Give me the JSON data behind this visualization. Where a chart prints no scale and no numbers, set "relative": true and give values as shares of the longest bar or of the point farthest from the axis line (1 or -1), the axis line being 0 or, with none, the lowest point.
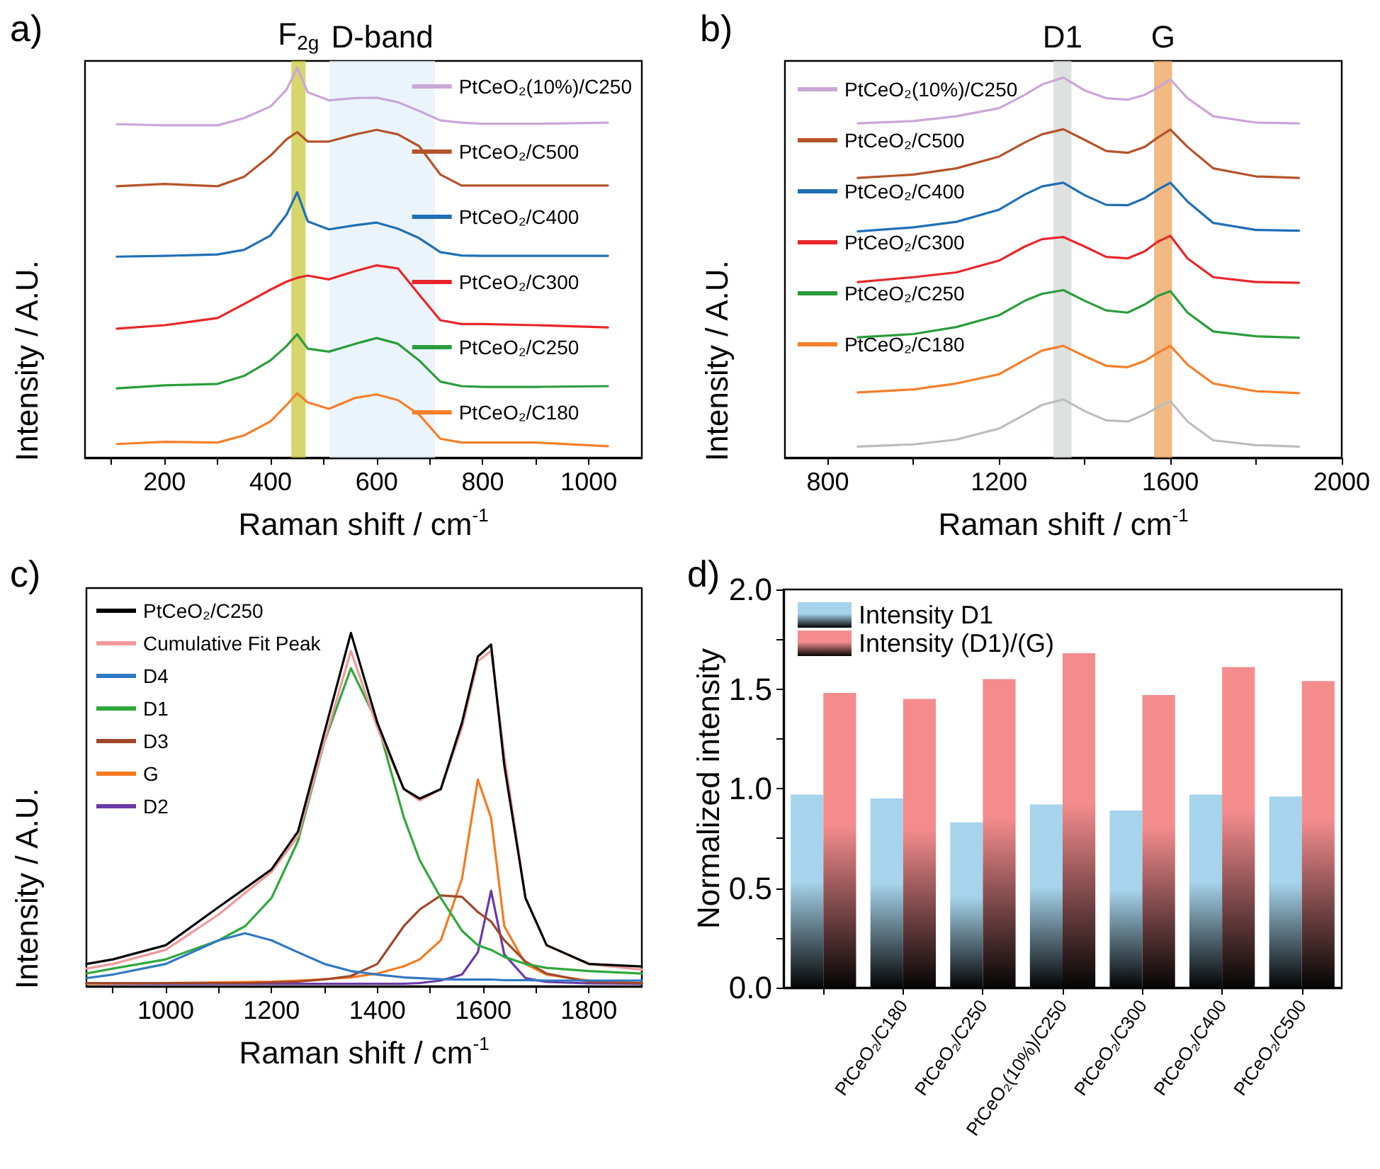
{
  "chart_data": [
    {
      "type": "line",
      "title": "a)",
      "xlabel": "Raman shift / cm$^{-1}$",
      "ylabel": "Intensity / A.U.",
      "relative": true,
      "legend": "top right",
      "xlim": [
        50,
        1100
      ],
      "xticks": [
        {
          "value": 100,
          "label": null
        },
        200,
        {
          "value": 300,
          "label": null
        },
        400,
        {
          "value": 500,
          "label": null
        },
        600,
        {
          "value": 700,
          "label": null
        },
        800,
        {
          "value": 900,
          "label": null
        },
        1000
      ],
      "x": [
        110,
        200,
        300,
        350,
        400,
        430,
        450,
        470,
        510,
        560,
        600,
        640,
        680,
        720,
        760,
        800,
        900,
        1036
      ],
      "bands": [
        {
          "axis": "x",
          "from": 439,
          "to": 466,
          "label": "F$_{2g}$",
          "color": "#c8c83c"
        },
        {
          "axis": "x",
          "from": 511,
          "to": 710,
          "label": "D-band",
          "color": "#e6f0fa"
        }
      ],
      "series": [
        {
          "name": "PtCeO₂(10%)/C250",
          "color": "#c9a6d8",
          "values": [
            0.851,
            0.848,
            0.848,
            0.867,
            0.898,
            0.942,
            1.0,
            0.935,
            0.914,
            0.92,
            0.921,
            0.909,
            0.886,
            0.861,
            0.855,
            0.852,
            0.852,
            0.855
          ]
        },
        {
          "name": "PtCeO₂/C500",
          "color": "#b5532a",
          "values": [
            0.687,
            0.693,
            0.687,
            0.712,
            0.768,
            0.811,
            0.83,
            0.805,
            0.805,
            0.824,
            0.836,
            0.824,
            0.793,
            0.718,
            0.689,
            0.689,
            0.689,
            0.689
          ]
        },
        {
          "name": "PtCeO₂/C400",
          "color": "#1f6fb5",
          "values": [
            0.501,
            0.503,
            0.507,
            0.519,
            0.557,
            0.612,
            0.671,
            0.594,
            0.573,
            0.584,
            0.591,
            0.575,
            0.55,
            0.513,
            0.504,
            0.503,
            0.503,
            0.503
          ]
        },
        {
          "name": "PtCeO₂/C300",
          "color": "#e8262a",
          "values": [
            0.311,
            0.32,
            0.339,
            0.376,
            0.414,
            0.435,
            0.445,
            0.451,
            0.441,
            0.463,
            0.478,
            0.47,
            0.401,
            0.333,
            0.323,
            0.323,
            0.32,
            0.314
          ]
        },
        {
          "name": "PtCeO₂/C250",
          "color": "#2a9d3c",
          "values": [
            0.153,
            0.161,
            0.165,
            0.186,
            0.227,
            0.265,
            0.296,
            0.258,
            0.25,
            0.271,
            0.286,
            0.271,
            0.227,
            0.171,
            0.159,
            0.157,
            0.157,
            0.159
          ]
        },
        {
          "name": "PtCeO₂/C180",
          "color": "#f57f2a",
          "values": [
            0.006,
            0.012,
            0.01,
            0.029,
            0.066,
            0.109,
            0.14,
            0.116,
            0.099,
            0.128,
            0.137,
            0.122,
            0.084,
            0.02,
            0.01,
            0.01,
            0.01,
            0.0
          ]
        }
      ]
    },
    {
      "type": "line",
      "title": "b)",
      "xlabel": "Raman shift / cm$^{-1}$",
      "ylabel": "Intensity / A.U.",
      "relative": true,
      "legend": "top left",
      "xlim": [
        700,
        2000
      ],
      "xticks": [
        800,
        {
          "value": 1000,
          "label": null
        },
        1200,
        {
          "value": 1400,
          "label": null
        },
        1600,
        {
          "value": 1800,
          "label": null
        },
        2000
      ],
      "x": [
        870,
        1000,
        1100,
        1200,
        1260,
        1300,
        1350,
        1400,
        1450,
        1500,
        1540,
        1570,
        1600,
        1640,
        1700,
        1800,
        1900
      ],
      "bands": [
        {
          "axis": "x",
          "from": 1327,
          "to": 1369,
          "label": "D1",
          "color": "#d4d6d6"
        },
        {
          "axis": "x",
          "from": 1562,
          "to": 1604,
          "label": "G",
          "color": "#eda25a"
        }
      ],
      "series": [
        {
          "name": "PtCeO₂(10%)/C250",
          "color": "#c9a6d8",
          "values": [
            0.876,
            0.882,
            0.895,
            0.917,
            0.953,
            0.981,
            1.0,
            0.965,
            0.944,
            0.94,
            0.953,
            0.972,
            0.995,
            0.944,
            0.895,
            0.878,
            0.876
          ]
        },
        {
          "name": "PtCeO₂/C500",
          "color": "#b5532a",
          "values": [
            0.728,
            0.737,
            0.754,
            0.786,
            0.824,
            0.846,
            0.86,
            0.831,
            0.801,
            0.796,
            0.812,
            0.837,
            0.859,
            0.812,
            0.754,
            0.732,
            0.728
          ]
        },
        {
          "name": "PtCeO₂/C400",
          "color": "#1f6fb5",
          "values": [
            0.583,
            0.594,
            0.609,
            0.642,
            0.683,
            0.705,
            0.715,
            0.681,
            0.655,
            0.654,
            0.673,
            0.696,
            0.715,
            0.664,
            0.606,
            0.587,
            0.585
          ]
        },
        {
          "name": "PtCeO₂/C300",
          "color": "#e8262a",
          "values": [
            0.446,
            0.459,
            0.472,
            0.504,
            0.542,
            0.562,
            0.568,
            0.542,
            0.514,
            0.51,
            0.529,
            0.555,
            0.571,
            0.51,
            0.459,
            0.446,
            0.444
          ]
        },
        {
          "name": "PtCeO₂/C250",
          "color": "#2a9d3c",
          "values": [
            0.296,
            0.305,
            0.324,
            0.356,
            0.395,
            0.414,
            0.424,
            0.395,
            0.369,
            0.363,
            0.385,
            0.408,
            0.421,
            0.363,
            0.312,
            0.299,
            0.295
          ]
        },
        {
          "name": "PtCeO₂/C180",
          "color": "#f57f2a",
          "values": [
            0.147,
            0.155,
            0.171,
            0.196,
            0.235,
            0.26,
            0.273,
            0.245,
            0.219,
            0.215,
            0.232,
            0.254,
            0.273,
            0.222,
            0.171,
            0.15,
            0.145
          ]
        },
        {
          "color": "#bdbdbd",
          "values": [
            0.0,
            0.006,
            0.019,
            0.049,
            0.087,
            0.113,
            0.128,
            0.096,
            0.071,
            0.068,
            0.087,
            0.106,
            0.123,
            0.068,
            0.017,
            0.004,
            0.0
          ]
        }
      ]
    },
    {
      "type": "line",
      "title": "c)",
      "xlabel": "Raman shift / cm$^{-1}$",
      "ylabel": "Intensity / A.U.",
      "relative": true,
      "legend": "top left",
      "xlim": [
        850,
        1900
      ],
      "xticks": [
        {
          "value": 900,
          "label": null
        },
        1000,
        {
          "value": 1100,
          "label": null
        },
        1200,
        {
          "value": 1300,
          "label": null
        },
        1400,
        {
          "value": 1500,
          "label": null
        },
        1600,
        {
          "value": 1700,
          "label": null
        },
        1800
      ],
      "x": [
        850,
        900,
        1000,
        1100,
        1150,
        1200,
        1250,
        1300,
        1350,
        1400,
        1450,
        1480,
        1520,
        1560,
        1590,
        1615,
        1640,
        1680,
        1720,
        1800,
        1900
      ],
      "series": [
        {
          "name": "PtCeO₂/C250",
          "color": "#000000",
          "values": [
            0.063,
            0.076,
            0.116,
            0.224,
            0.277,
            0.331,
            0.438,
            0.719,
            1.0,
            0.746,
            0.558,
            0.531,
            0.558,
            0.746,
            0.933,
            0.967,
            0.625,
            0.25,
            0.116,
            0.063,
            0.056
          ]
        },
        {
          "name": "Cumulative Fit Peak",
          "color": "#f0999c",
          "values": [
            0.05,
            0.063,
            0.103,
            0.203,
            0.264,
            0.324,
            0.424,
            0.692,
            0.949,
            0.732,
            0.558,
            0.525,
            0.558,
            0.732,
            0.92,
            0.949,
            0.652,
            0.25,
            0.116,
            0.063,
            0.047
          ]
        },
        {
          "name": "D4",
          "color": "#2f78c4",
          "values": [
            0.023,
            0.033,
            0.063,
            0.13,
            0.15,
            0.13,
            0.096,
            0.063,
            0.043,
            0.033,
            0.025,
            0.023,
            0.02,
            0.019,
            0.019,
            0.019,
            0.017,
            0.017,
            0.016,
            0.016,
            0.016
          ]
        },
        {
          "name": "D1",
          "color": "#2ea83c",
          "values": [
            0.036,
            0.05,
            0.076,
            0.13,
            0.17,
            0.25,
            0.411,
            0.692,
            0.9,
            0.746,
            0.478,
            0.357,
            0.25,
            0.157,
            0.116,
            0.103,
            0.083,
            0.063,
            0.052,
            0.043,
            0.036
          ]
        },
        {
          "name": "D3",
          "color": "#a0472a",
          "values": [
            0.009,
            0.009,
            0.009,
            0.009,
            0.009,
            0.011,
            0.013,
            0.019,
            0.029,
            0.063,
            0.17,
            0.217,
            0.257,
            0.253,
            0.21,
            0.183,
            0.13,
            0.07,
            0.036,
            0.012,
            0.009
          ]
        },
        {
          "name": "G",
          "color": "#f57a20",
          "values": [
            0.007,
            0.008,
            0.009,
            0.011,
            0.012,
            0.013,
            0.016,
            0.02,
            0.025,
            0.036,
            0.056,
            0.076,
            0.13,
            0.304,
            0.585,
            0.477,
            0.17,
            0.063,
            0.033,
            0.016,
            0.009
          ]
        },
        {
          "name": "D2",
          "color": "#6a3aa8",
          "values": [
            0.007,
            0.007,
            0.007,
            0.007,
            0.007,
            0.007,
            0.007,
            0.007,
            0.007,
            0.007,
            0.007,
            0.009,
            0.016,
            0.033,
            0.096,
            0.27,
            0.09,
            0.023,
            0.012,
            0.008,
            0.007
          ]
        }
      ]
    },
    {
      "type": "bar",
      "title": "d)",
      "ylabel": "Normalized intensity",
      "legend": "top left",
      "categories": [
        null,
        "PtCeO₂/C180",
        "PtCeO₂/C250",
        "PtCeO₂(10%)/C250",
        "PtCeO₂/C300",
        "PtCeO₂/C400",
        "PtCeO₂/C500"
      ],
      "ylim": [
        0,
        2
      ],
      "yticks": [
        {
          "value": 0,
          "label": "0.0"
        },
        {
          "value": 0.25,
          "label": null
        },
        {
          "value": 0.5,
          "label": "0.5"
        },
        {
          "value": 0.75,
          "label": null
        },
        {
          "value": 1.0,
          "label": "1.0"
        },
        {
          "value": 1.25,
          "label": null
        },
        {
          "value": 1.5,
          "label": "1.5"
        },
        {
          "value": 1.75,
          "label": null
        },
        {
          "value": 2.0,
          "label": "2.0"
        }
      ],
      "series": [
        {
          "name": "Intensity D1",
          "color": "#a6d4ec",
          "values": [
            0.97,
            0.95,
            0.83,
            0.92,
            0.89,
            0.97,
            0.96
          ]
        },
        {
          "name": "Intensity (D1)/(G)",
          "color": "#f48c8e",
          "values": [
            1.48,
            1.45,
            1.55,
            1.68,
            1.47,
            1.61,
            1.54
          ]
        }
      ]
    }
  ]
}
